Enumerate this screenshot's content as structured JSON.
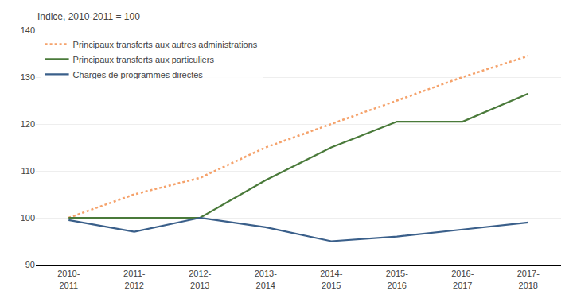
{
  "chart_data": {
    "type": "line",
    "y_label": "Indice, 2010-2011 = 100",
    "categories": [
      "2010-\n2011",
      "2011-\n2012",
      "2012-\n2013",
      "2013-\n2014",
      "2014-\n2015",
      "2015-\n2016",
      "2016-\n2017",
      "2017-\n2018"
    ],
    "series": [
      {
        "name": "Principaux transferts aux autres administrations",
        "color": "#F5A26B",
        "line_style": "dotted",
        "values": [
          100.0,
          105.0,
          108.5,
          115.0,
          120.0,
          125.0,
          130.0,
          134.5
        ]
      },
      {
        "name": "Principaux transferts aux particuliers",
        "color": "#4A7A3A",
        "line_style": "solid",
        "values": [
          100.0,
          100.0,
          100.0,
          108.0,
          115.0,
          120.5,
          120.5,
          126.5
        ]
      },
      {
        "name": "Charges de programmes directes",
        "color": "#3A5F8A",
        "line_style": "solid",
        "values": [
          99.5,
          97.0,
          100.0,
          98.0,
          95.0,
          96.0,
          97.5,
          99.0
        ]
      }
    ],
    "ylim": [
      90,
      140
    ],
    "yticks": [
      90,
      100,
      110,
      120,
      130,
      140
    ],
    "grid": true,
    "legend": "upper left"
  }
}
